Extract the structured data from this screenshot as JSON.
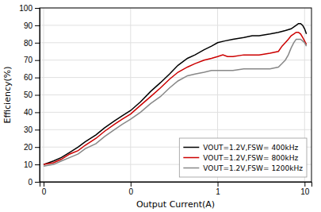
{
  "chart_data": {
    "type": "line",
    "xlabel": "Output Current(A)",
    "ylabel": "Efficiency(%)",
    "log": "x",
    "grid": true,
    "legend": "lower right",
    "xlim": [
      0.009,
      12
    ],
    "ylim": [
      0,
      100
    ],
    "xticks": [
      {
        "value": 0.01,
        "label": "0"
      },
      {
        "value": 0.1,
        "label": "0"
      },
      {
        "value": 1,
        "label": "1"
      },
      {
        "value": 10,
        "label": "10"
      }
    ],
    "yticks": [
      0,
      10,
      20,
      30,
      40,
      50,
      60,
      70,
      80,
      90,
      100
    ],
    "series": [
      {
        "name": "VOUT=1.2V,FSW= 400kHz",
        "color": "#000000",
        "x": [
          0.01,
          0.013,
          0.016,
          0.02,
          0.025,
          0.03,
          0.04,
          0.05,
          0.065,
          0.08,
          0.1,
          0.13,
          0.17,
          0.22,
          0.28,
          0.35,
          0.45,
          0.55,
          0.7,
          0.85,
          1.0,
          1.2,
          1.5,
          2.0,
          2.5,
          3.0,
          4.0,
          5.0,
          6.0,
          7.0,
          8.0,
          8.5,
          9.0,
          9.5,
          10.0,
          10.5
        ],
        "values": [
          10,
          12,
          14,
          17,
          20,
          23,
          27,
          31,
          35,
          38,
          41,
          46,
          52,
          57,
          62,
          67,
          71,
          73,
          76,
          78,
          80,
          81,
          82,
          83,
          84,
          84,
          85,
          86,
          87,
          88,
          90,
          91,
          91,
          90,
          88,
          85
        ]
      },
      {
        "name": "VOUT=1.2V,FSW= 800kHz",
        "color": "#cc0000",
        "x": [
          0.01,
          0.013,
          0.016,
          0.02,
          0.025,
          0.03,
          0.04,
          0.05,
          0.065,
          0.08,
          0.1,
          0.13,
          0.17,
          0.22,
          0.28,
          0.35,
          0.45,
          0.55,
          0.7,
          0.85,
          1.0,
          1.15,
          1.3,
          1.5,
          2.0,
          2.5,
          3.0,
          4.0,
          5.0,
          5.5,
          6.0,
          6.5,
          7.0,
          7.5,
          8.0,
          8.5,
          9.0,
          9.5,
          10.0,
          10.5
        ],
        "values": [
          10,
          11,
          13,
          16,
          18,
          21,
          25,
          29,
          33,
          36,
          39,
          44,
          49,
          54,
          59,
          63,
          66,
          68,
          70,
          71,
          72,
          73,
          72,
          72,
          73,
          73,
          73,
          74,
          75,
          78,
          80,
          82,
          84,
          85,
          86,
          86,
          85,
          83,
          81,
          79
        ]
      },
      {
        "name": "VOUT=1.2V,FSW= 1200kHz",
        "color": "#888888",
        "x": [
          0.01,
          0.013,
          0.016,
          0.02,
          0.025,
          0.03,
          0.04,
          0.05,
          0.065,
          0.08,
          0.1,
          0.13,
          0.17,
          0.22,
          0.28,
          0.35,
          0.45,
          0.55,
          0.7,
          0.85,
          1.0,
          1.2,
          1.5,
          2.0,
          2.5,
          3.0,
          4.0,
          5.0,
          5.5,
          6.0,
          6.5,
          7.0,
          7.5,
          8.0,
          8.5,
          9.0,
          9.5,
          10.0,
          10.5
        ],
        "values": [
          9,
          10,
          12,
          14,
          16,
          19,
          22,
          26,
          30,
          33,
          36,
          40,
          45,
          49,
          54,
          58,
          61,
          62,
          63,
          64,
          64,
          64,
          64,
          65,
          65,
          65,
          65,
          66,
          68,
          70,
          73,
          77,
          80,
          82,
          82,
          82,
          81,
          80,
          78
        ]
      }
    ]
  }
}
